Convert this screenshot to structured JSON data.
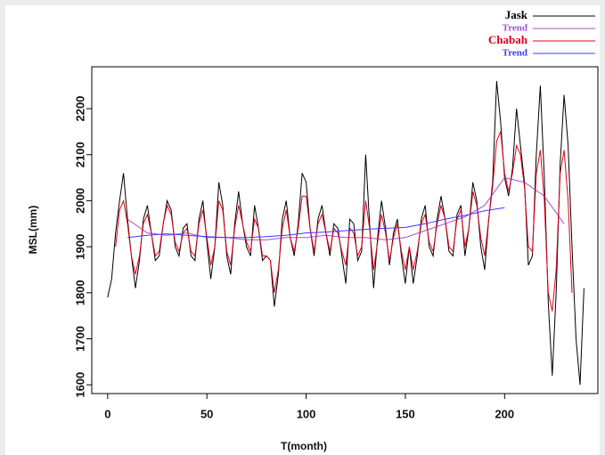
{
  "chart_data": {
    "type": "line",
    "xlabel": "T(month)",
    "ylabel": "MSL(mm)",
    "xlim": [
      -8,
      247
    ],
    "xticks": [
      0,
      50,
      100,
      150,
      200
    ],
    "ylim": [
      1581,
      2291
    ],
    "yticks": [
      1600,
      1700,
      1800,
      1900,
      2000,
      2100,
      2200
    ],
    "legend": "top-right",
    "series": [
      {
        "name": "Jask",
        "color": "#000000",
        "x": [
          0,
          2,
          4,
          6,
          8,
          10,
          12,
          14,
          16,
          18,
          20,
          22,
          24,
          26,
          28,
          30,
          32,
          34,
          36,
          38,
          40,
          42,
          44,
          46,
          48,
          50,
          52,
          54,
          56,
          58,
          60,
          62,
          64,
          66,
          68,
          70,
          72,
          74,
          76,
          78,
          80,
          82,
          84,
          86,
          88,
          90,
          92,
          94,
          96,
          98,
          100,
          102,
          104,
          106,
          108,
          110,
          112,
          114,
          116,
          118,
          120,
          122,
          124,
          126,
          128,
          130,
          132,
          134,
          136,
          138,
          140,
          142,
          144,
          146,
          148,
          150,
          152,
          154,
          156,
          158,
          160,
          162,
          164,
          166,
          168,
          170,
          172,
          174,
          176,
          178,
          180,
          182,
          184,
          186,
          188,
          190,
          192,
          194,
          196,
          198,
          200,
          202,
          204,
          206,
          208,
          210,
          212,
          214,
          216,
          218,
          220,
          222,
          224,
          226,
          228,
          230,
          232,
          234,
          236,
          238,
          240
        ],
        "values": [
          1790,
          1830,
          1930,
          2000,
          2060,
          1960,
          1880,
          1810,
          1870,
          1960,
          1990,
          1930,
          1870,
          1880,
          1950,
          2000,
          1980,
          1900,
          1880,
          1940,
          1950,
          1880,
          1870,
          1960,
          2000,
          1910,
          1830,
          1900,
          2040,
          1990,
          1880,
          1840,
          1950,
          2020,
          1950,
          1900,
          1880,
          1990,
          1940,
          1870,
          1880,
          1870,
          1770,
          1840,
          1960,
          2000,
          1920,
          1880,
          1950,
          2060,
          2040,
          1940,
          1880,
          1960,
          1990,
          1930,
          1880,
          1950,
          1940,
          1880,
          1820,
          1960,
          1950,
          1870,
          1890,
          2100,
          1950,
          1810,
          1920,
          2000,
          1940,
          1860,
          1930,
          1960,
          1880,
          1820,
          1900,
          1820,
          1880,
          1960,
          1990,
          1900,
          1880,
          1960,
          2010,
          1960,
          1890,
          1880,
          1970,
          1990,
          1880,
          1940,
          2040,
          2000,
          1900,
          1850,
          1960,
          2040,
          2260,
          2170,
          2050,
          2010,
          2070,
          2200,
          2120,
          2040,
          1860,
          1880,
          2100,
          2250,
          2050,
          1780,
          1620,
          1800,
          2080,
          2230,
          2120,
          1900,
          1700,
          1600,
          1810
        ]
      },
      {
        "name": "Trend",
        "color": "#a64fd0",
        "x": [
          10,
          20,
          30,
          40,
          50,
          60,
          70,
          80,
          90,
          100,
          110,
          120,
          130,
          140,
          150,
          160,
          170,
          180,
          190,
          200,
          210,
          220,
          230
        ],
        "values": [
          1960,
          1930,
          1925,
          1930,
          1920,
          1920,
          1915,
          1915,
          1920,
          1920,
          1925,
          1920,
          1920,
          1915,
          1920,
          1935,
          1950,
          1965,
          1990,
          2050,
          2040,
          2010,
          1950
        ]
      },
      {
        "name": "Chabah",
        "color": "#e0001b",
        "x": [
          4,
          6,
          8,
          10,
          12,
          14,
          16,
          18,
          20,
          22,
          24,
          26,
          28,
          30,
          32,
          34,
          36,
          38,
          40,
          42,
          44,
          46,
          48,
          50,
          52,
          54,
          56,
          58,
          60,
          62,
          64,
          66,
          68,
          70,
          72,
          74,
          76,
          78,
          80,
          82,
          84,
          86,
          88,
          90,
          92,
          94,
          96,
          98,
          100,
          102,
          104,
          106,
          108,
          110,
          112,
          114,
          116,
          118,
          120,
          122,
          124,
          126,
          128,
          130,
          132,
          134,
          136,
          138,
          140,
          142,
          144,
          146,
          148,
          150,
          152,
          154,
          156,
          158,
          160,
          162,
          164,
          166,
          168,
          170,
          172,
          174,
          176,
          178,
          180,
          182,
          184,
          186,
          188,
          190,
          192,
          194,
          196,
          198,
          200,
          202,
          204,
          206,
          208,
          210,
          212,
          214,
          216,
          218,
          220,
          222,
          224,
          226,
          228,
          230,
          232,
          234
        ],
        "values": [
          1900,
          1980,
          2000,
          1950,
          1880,
          1840,
          1880,
          1950,
          1970,
          1930,
          1880,
          1890,
          1950,
          1990,
          1970,
          1910,
          1890,
          1930,
          1940,
          1890,
          1880,
          1950,
          1980,
          1920,
          1860,
          1900,
          2000,
          1980,
          1890,
          1860,
          1940,
          1990,
          1950,
          1910,
          1890,
          1960,
          1940,
          1880,
          1880,
          1870,
          1800,
          1850,
          1940,
          1980,
          1920,
          1890,
          1940,
          2010,
          2010,
          1940,
          1890,
          1950,
          1970,
          1930,
          1890,
          1940,
          1930,
          1890,
          1860,
          1940,
          1930,
          1880,
          1900,
          2000,
          1940,
          1850,
          1910,
          1970,
          1930,
          1870,
          1920,
          1950,
          1890,
          1850,
          1900,
          1850,
          1890,
          1950,
          1970,
          1910,
          1890,
          1950,
          1990,
          1960,
          1900,
          1890,
          1960,
          1980,
          1900,
          1940,
          2020,
          1990,
          1920,
          1880,
          1960,
          2030,
          2130,
          2150,
          2060,
          2020,
          2060,
          2120,
          2100,
          2030,
          1900,
          1890,
          2060,
          2110,
          2000,
          1800,
          1760,
          1850,
          2060,
          2110,
          2000,
          1800
        ]
      },
      {
        "name": "Trend",
        "color": "#3b3bff",
        "x": [
          10,
          20,
          30,
          40,
          50,
          60,
          70,
          80,
          90,
          100,
          110,
          120,
          130,
          140,
          150,
          160,
          170,
          180,
          190,
          200
        ],
        "values": [
          1920,
          1925,
          1928,
          1925,
          1922,
          1920,
          1920,
          1922,
          1925,
          1930,
          1932,
          1935,
          1938,
          1940,
          1942,
          1950,
          1960,
          1968,
          1978,
          1985
        ]
      }
    ]
  }
}
